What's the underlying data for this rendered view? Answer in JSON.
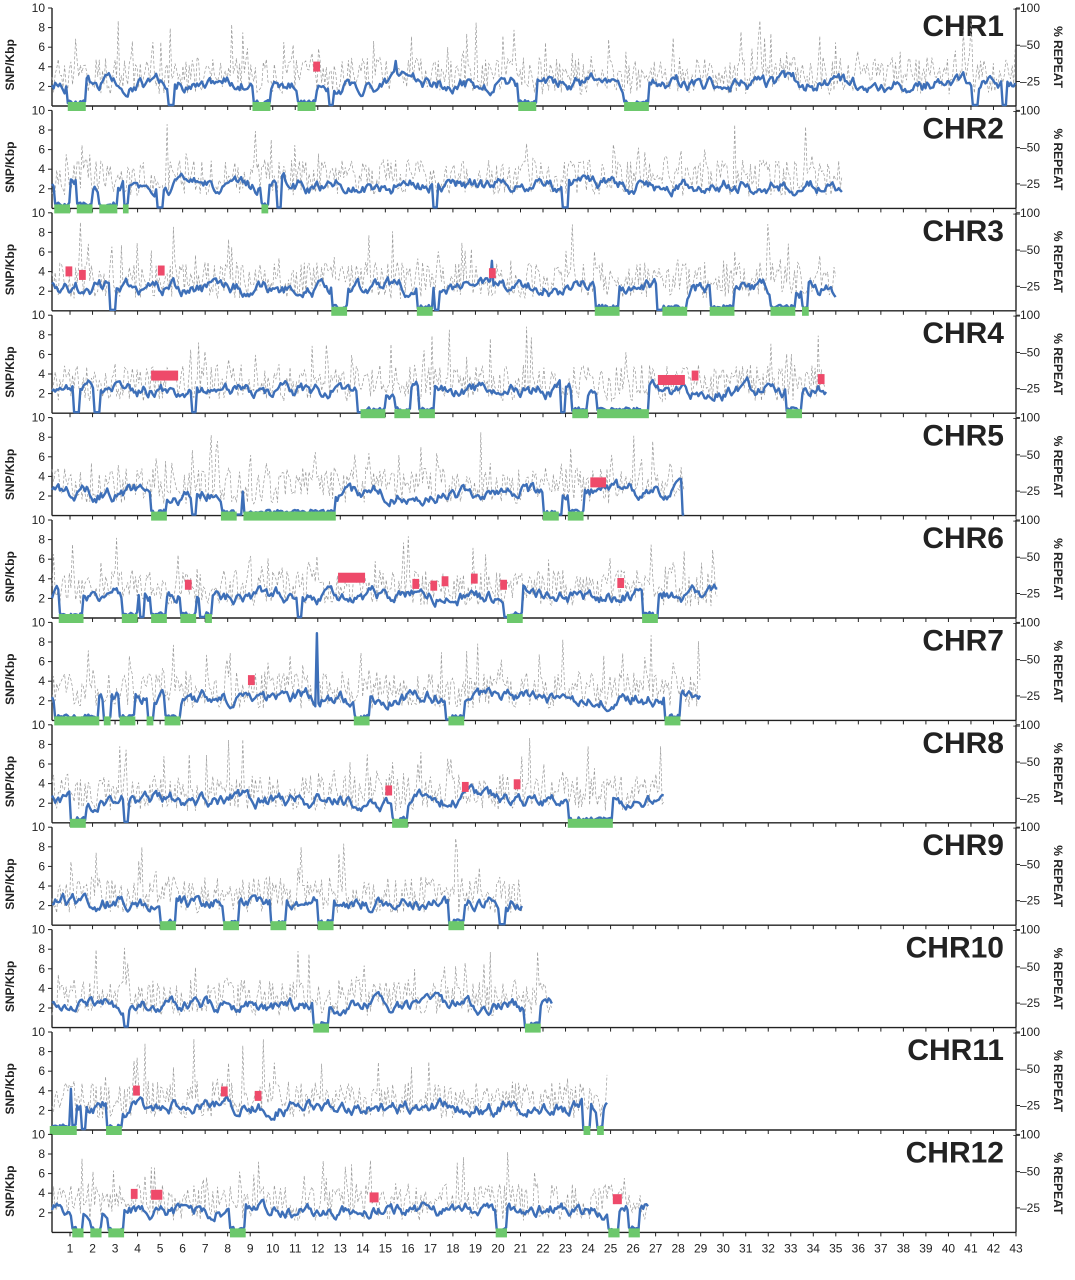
{
  "chart_data": {
    "type": "line",
    "left_axis_label": "SNP/Kbp",
    "right_axis_label": "% REPEAT",
    "left_ticks": [
      "2",
      "4",
      "6",
      "8",
      "10"
    ],
    "right_ticks": [
      "25",
      "50",
      "100"
    ],
    "x_ticks": [
      "1",
      "2",
      "3",
      "4",
      "5",
      "6",
      "7",
      "8",
      "9",
      "10",
      "11",
      "12",
      "13",
      "14",
      "15",
      "16",
      "17",
      "18",
      "19",
      "20",
      "21",
      "22",
      "23",
      "24",
      "25",
      "26",
      "27",
      "28",
      "29",
      "30",
      "31",
      "32",
      "33",
      "34",
      "35",
      "36",
      "37",
      "38",
      "39",
      "40",
      "41",
      "42",
      "43"
    ],
    "xlim": [
      0.2,
      43
    ],
    "ylim_left": [
      0,
      10
    ],
    "ylim_right": [
      0,
      100
    ],
    "series": [
      {
        "role": "snp_density",
        "color": "#3d6fb8",
        "style": "solid"
      },
      {
        "role": "repeat_percent",
        "color": "#999999",
        "style": "dashed"
      }
    ],
    "marker_colors": {
      "red": "#ee4a6a",
      "green": "#6cc86c"
    },
    "chromosomes": [
      {
        "name": "CHR1",
        "length": 43,
        "red": [
          [
            11.8,
            12.1
          ]
        ],
        "green": [
          [
            0.9,
            1.7
          ],
          [
            9.1,
            9.9
          ],
          [
            11.1,
            11.9
          ],
          [
            20.9,
            21.7
          ],
          [
            25.6,
            26.7
          ]
        ],
        "spikes": [
          [
            15.4,
            4.6
          ]
        ],
        "dips": [
          [
            5.5
          ],
          [
            9.5
          ],
          [
            12.6
          ],
          [
            26.0
          ],
          [
            41.2
          ],
          [
            42.5
          ]
        ]
      },
      {
        "name": "CHR2",
        "length": 35.3,
        "red": [],
        "green": [
          [
            0.3,
            1.0
          ],
          [
            1.3,
            2.0
          ],
          [
            2.3,
            3.1
          ],
          [
            3.35,
            3.6
          ],
          [
            9.5,
            9.8
          ]
        ],
        "spikes": [],
        "dips": [
          [
            2.5
          ],
          [
            5.0
          ],
          [
            10.3
          ],
          [
            17.2
          ],
          [
            23.0
          ]
        ]
      },
      {
        "name": "CHR3",
        "length": 35,
        "red": [
          [
            0.8,
            1.1
          ],
          [
            1.4,
            1.7
          ],
          [
            4.9,
            5.2
          ],
          [
            19.6,
            19.9
          ]
        ],
        "green": [
          [
            12.6,
            13.3
          ],
          [
            16.4,
            17.1
          ],
          [
            24.3,
            25.4
          ],
          [
            27.3,
            28.4
          ],
          [
            29.4,
            30.5
          ],
          [
            32.1,
            33.2
          ],
          [
            33.5,
            33.8
          ]
        ],
        "spikes": [
          [
            19.7,
            5.1
          ]
        ],
        "dips": [
          [
            2.9
          ],
          [
            13.0
          ],
          [
            17.3
          ],
          [
            27.2
          ]
        ]
      },
      {
        "name": "CHR4",
        "length": 34.6,
        "red": [
          [
            4.6,
            5.8
          ],
          [
            27.1,
            28.3
          ],
          [
            28.6,
            28.9
          ],
          [
            34.2,
            34.5
          ]
        ],
        "green": [
          [
            13.9,
            15.0
          ],
          [
            15.4,
            16.1
          ],
          [
            16.5,
            17.2
          ],
          [
            23.3,
            24.0
          ],
          [
            24.4,
            26.7
          ],
          [
            32.8,
            33.5
          ]
        ],
        "spikes": [],
        "dips": [
          [
            1.3
          ],
          [
            2.2
          ],
          [
            6.5
          ],
          [
            13.9
          ],
          [
            15.8
          ],
          [
            22.9
          ],
          [
            26.5
          ]
        ]
      },
      {
        "name": "CHR5",
        "length": 28.3,
        "red": [
          [
            24.1,
            24.8
          ]
        ],
        "green": [
          [
            4.6,
            5.3
          ],
          [
            7.7,
            8.4
          ],
          [
            8.7,
            12.8
          ],
          [
            22.0,
            22.7
          ],
          [
            23.1,
            23.8
          ]
        ],
        "spikes": [],
        "dips": [
          [
            4.8
          ],
          [
            6.5
          ],
          [
            8.5
          ],
          [
            22.7
          ],
          [
            28.3
          ]
        ]
      },
      {
        "name": "CHR6",
        "length": 29.8,
        "red": [
          [
            6.1,
            6.4
          ],
          [
            12.9,
            14.1
          ],
          [
            16.2,
            16.5
          ],
          [
            17.0,
            17.3
          ],
          [
            17.5,
            17.8
          ],
          [
            18.8,
            19.1
          ],
          [
            20.1,
            20.4
          ],
          [
            25.3,
            25.6
          ]
        ],
        "green": [
          [
            0.5,
            1.6
          ],
          [
            3.3,
            4.0
          ],
          [
            4.6,
            5.3
          ],
          [
            5.9,
            6.6
          ],
          [
            7.0,
            7.3
          ],
          [
            20.4,
            21.1
          ],
          [
            26.4,
            27.1
          ]
        ],
        "spikes": [],
        "dips": [
          [
            0.9
          ],
          [
            4.2
          ],
          [
            6.9
          ],
          [
            11.2
          ],
          [
            20.4
          ],
          [
            27.0
          ]
        ]
      },
      {
        "name": "CHR7",
        "length": 29,
        "red": [
          [
            8.9,
            9.2
          ]
        ],
        "green": [
          [
            0.3,
            2.3
          ],
          [
            2.5,
            2.8
          ],
          [
            3.2,
            3.9
          ],
          [
            4.4,
            4.7
          ],
          [
            5.2,
            5.9
          ],
          [
            13.6,
            14.3
          ],
          [
            17.8,
            18.5
          ],
          [
            27.4,
            28.1
          ]
        ],
        "spikes": [
          [
            11.9,
            8.9
          ]
        ],
        "dips": [
          [
            1.4
          ],
          [
            2.6
          ],
          [
            4.6
          ],
          [
            13.8
          ],
          [
            17.8
          ],
          [
            27.5
          ]
        ]
      },
      {
        "name": "CHR8",
        "length": 27.4,
        "red": [
          [
            15.0,
            15.3
          ],
          [
            18.4,
            18.7
          ],
          [
            20.7,
            21.0
          ]
        ],
        "green": [
          [
            1.0,
            1.7
          ],
          [
            15.3,
            16.0
          ],
          [
            23.1,
            25.1
          ]
        ],
        "spikes": [],
        "dips": [
          [
            1.2
          ],
          [
            3.5
          ],
          [
            15.5
          ],
          [
            23.4
          ]
        ]
      },
      {
        "name": "CHR9",
        "length": 21.1,
        "red": [],
        "green": [
          [
            5.0,
            5.7
          ],
          [
            7.8,
            8.5
          ],
          [
            9.9,
            10.6
          ],
          [
            12.0,
            12.7
          ],
          [
            17.8,
            18.5
          ]
        ],
        "spikes": [],
        "dips": [
          [
            5.2
          ],
          [
            8.0
          ],
          [
            10.1
          ],
          [
            12.3
          ],
          [
            17.9
          ],
          [
            20.2
          ]
        ]
      },
      {
        "name": "CHR10",
        "length": 22.4,
        "red": [],
        "green": [
          [
            11.8,
            12.5
          ],
          [
            21.2,
            21.9
          ]
        ],
        "spikes": [],
        "dips": [
          [
            3.5
          ],
          [
            12.0
          ],
          [
            21.3
          ]
        ]
      },
      {
        "name": "CHR11",
        "length": 24.9,
        "red": [
          [
            3.8,
            4.1
          ],
          [
            7.7,
            8.0
          ],
          [
            9.2,
            9.5
          ]
        ],
        "green": [
          [
            0.1,
            1.3
          ],
          [
            2.6,
            3.3
          ],
          [
            23.8,
            24.1
          ],
          [
            24.4,
            24.7
          ]
        ],
        "spikes": [
          [
            1.0,
            4.2
          ]
        ],
        "dips": [
          [
            1.6
          ],
          [
            3.0
          ],
          [
            23.9
          ]
        ]
      },
      {
        "name": "CHR12",
        "length": 26.7,
        "red": [
          [
            3.7,
            4.0
          ],
          [
            4.6,
            5.1
          ],
          [
            14.3,
            14.7
          ],
          [
            25.1,
            25.5
          ]
        ],
        "green": [
          [
            1.1,
            1.6
          ],
          [
            1.9,
            2.4
          ],
          [
            2.7,
            3.4
          ],
          [
            8.1,
            8.8
          ],
          [
            19.9,
            20.4
          ],
          [
            24.9,
            25.4
          ],
          [
            25.8,
            26.3
          ]
        ],
        "spikes": [],
        "dips": [
          [
            1.4
          ],
          [
            2.2
          ],
          [
            3.1
          ],
          [
            8.4
          ],
          [
            20.1
          ],
          [
            25.2
          ]
        ]
      }
    ]
  }
}
